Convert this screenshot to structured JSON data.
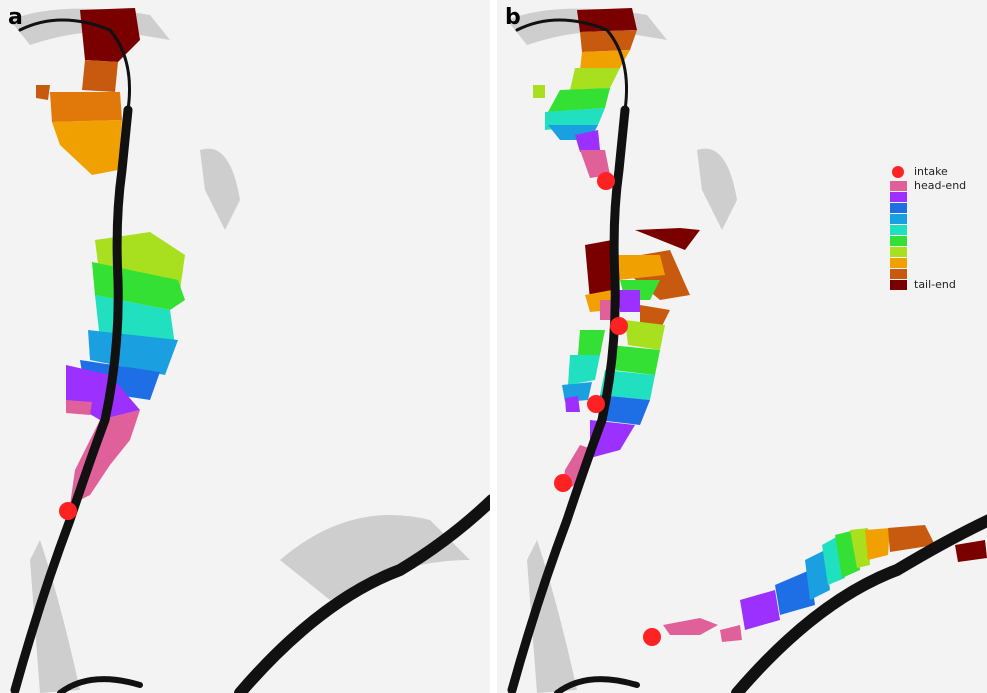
{
  "panels": [
    {
      "label": "a"
    },
    {
      "label": "b"
    }
  ],
  "legend": {
    "intake": "intake",
    "head_end": "head-end",
    "tail_end": "tail-end"
  }
}
